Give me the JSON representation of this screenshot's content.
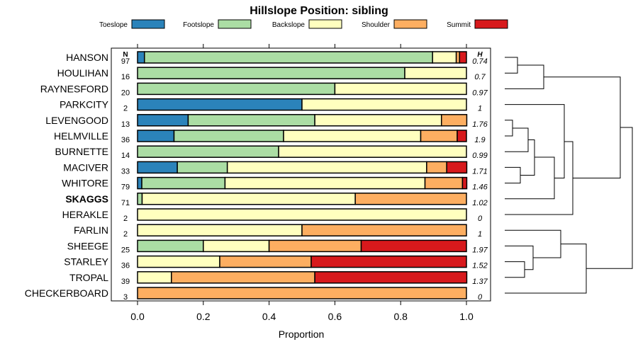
{
  "chart_data": {
    "type": "bar",
    "orientation": "horizontal-stacked",
    "title": "Hillslope Position: sibling",
    "xlabel": "Proportion",
    "xlim": [
      0,
      1
    ],
    "xticks": [
      "0.0",
      "0.2",
      "0.4",
      "0.6",
      "0.8",
      "1.0"
    ],
    "n_header": "N",
    "h_header": "H",
    "legend_position": "top",
    "series": [
      {
        "name": "Toeslope",
        "color": "#2b83ba"
      },
      {
        "name": "Footslope",
        "color": "#abdda4"
      },
      {
        "name": "Backslope",
        "color": "#ffffbf"
      },
      {
        "name": "Shoulder",
        "color": "#fdae61"
      },
      {
        "name": "Summit",
        "color": "#d7191c"
      }
    ],
    "rows": [
      {
        "name": "HANSON",
        "n": "97",
        "h": "0.74",
        "values": [
          0.021,
          0.876,
          0.072,
          0.01,
          0.021
        ]
      },
      {
        "name": "HOULIHAN",
        "n": "16",
        "h": "0.7",
        "values": [
          0,
          0.8125,
          0.1875,
          0,
          0
        ]
      },
      {
        "name": "RAYNESFORD",
        "n": "20",
        "h": "0.97",
        "values": [
          0,
          0.6,
          0.4,
          0,
          0
        ]
      },
      {
        "name": "PARKCITY",
        "n": "2",
        "h": "1",
        "values": [
          0.5,
          0,
          0.5,
          0,
          0
        ]
      },
      {
        "name": "LEVENGOOD",
        "n": "13",
        "h": "1.76",
        "values": [
          0.154,
          0.385,
          0.385,
          0.077,
          0
        ]
      },
      {
        "name": "HELMVILLE",
        "n": "36",
        "h": "1.9",
        "values": [
          0.111,
          0.333,
          0.417,
          0.111,
          0.028
        ]
      },
      {
        "name": "BURNETTE",
        "n": "14",
        "h": "0.99",
        "values": [
          0,
          0.429,
          0.571,
          0,
          0
        ]
      },
      {
        "name": "MACIVER",
        "n": "33",
        "h": "1.71",
        "values": [
          0.121,
          0.152,
          0.606,
          0.061,
          0.061
        ]
      },
      {
        "name": "WHITORE",
        "n": "79",
        "h": "1.46",
        "values": [
          0.013,
          0.253,
          0.608,
          0.114,
          0.013
        ]
      },
      {
        "name": "SKAGGS",
        "n": "71",
        "h": "1.02",
        "bold": true,
        "values": [
          0,
          0.014,
          0.648,
          0.338,
          0
        ]
      },
      {
        "name": "HERAKLE",
        "n": "2",
        "h": "0",
        "values": [
          0,
          0,
          1,
          0,
          0
        ]
      },
      {
        "name": "FARLIN",
        "n": "2",
        "h": "1",
        "values": [
          0,
          0,
          0.5,
          0.5,
          0
        ]
      },
      {
        "name": "SHEEGE",
        "n": "25",
        "h": "1.97",
        "values": [
          0,
          0.2,
          0.2,
          0.28,
          0.32
        ]
      },
      {
        "name": "STARLEY",
        "n": "36",
        "h": "1.52",
        "values": [
          0,
          0,
          0.25,
          0.278,
          0.472
        ]
      },
      {
        "name": "TROPAL",
        "n": "39",
        "h": "1.37",
        "values": [
          0,
          0,
          0.103,
          0.436,
          0.462
        ]
      },
      {
        "name": "CHECKERBOARD",
        "n": "3",
        "h": "0",
        "values": [
          0,
          0,
          0,
          1,
          0
        ]
      }
    ]
  }
}
